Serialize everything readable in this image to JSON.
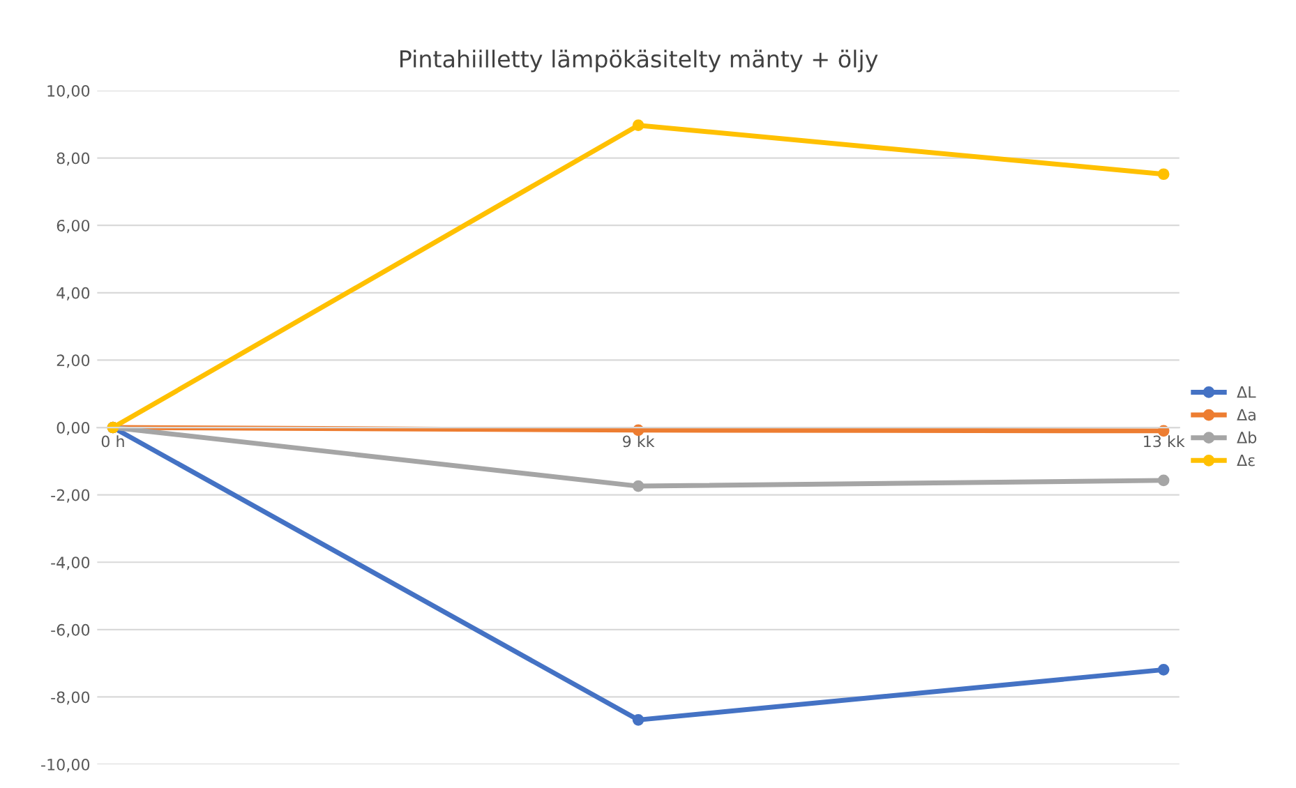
{
  "chart_data": {
    "type": "line",
    "title": "Pintahiilletty lämpökäsitelty mänty + öljy",
    "categories": [
      "0 h",
      "9 kk",
      "13 kk"
    ],
    "series": [
      {
        "name": "ΔL",
        "color": "#4472c4",
        "values": [
          0,
          -8.68,
          -7.19
        ]
      },
      {
        "name": "Δa",
        "color": "#ed7d31",
        "values": [
          0,
          -0.08,
          -0.1
        ]
      },
      {
        "name": "Δb",
        "color": "#a5a5a5",
        "values": [
          0,
          -1.74,
          -1.57
        ]
      },
      {
        "name": "Δε",
        "color": "#ffc000",
        "values": [
          0,
          8.97,
          7.52
        ]
      }
    ],
    "ylim": [
      -10,
      10
    ],
    "yticks": [
      {
        "value": -10,
        "label": "-10,00"
      },
      {
        "value": -8,
        "label": "-8,00"
      },
      {
        "value": -6,
        "label": "-6,00"
      },
      {
        "value": -4,
        "label": "-4,00"
      },
      {
        "value": -2,
        "label": "-2,00"
      },
      {
        "value": 0,
        "label": "0,00"
      },
      {
        "value": 2,
        "label": "2,00"
      },
      {
        "value": 4,
        "label": "4,00"
      },
      {
        "value": 6,
        "label": "6,00"
      },
      {
        "value": 8,
        "label": "8,00"
      },
      {
        "value": 10,
        "label": "10,00"
      }
    ],
    "grid": "y",
    "legend": "right",
    "marker": "circle",
    "line_style": "solid"
  }
}
